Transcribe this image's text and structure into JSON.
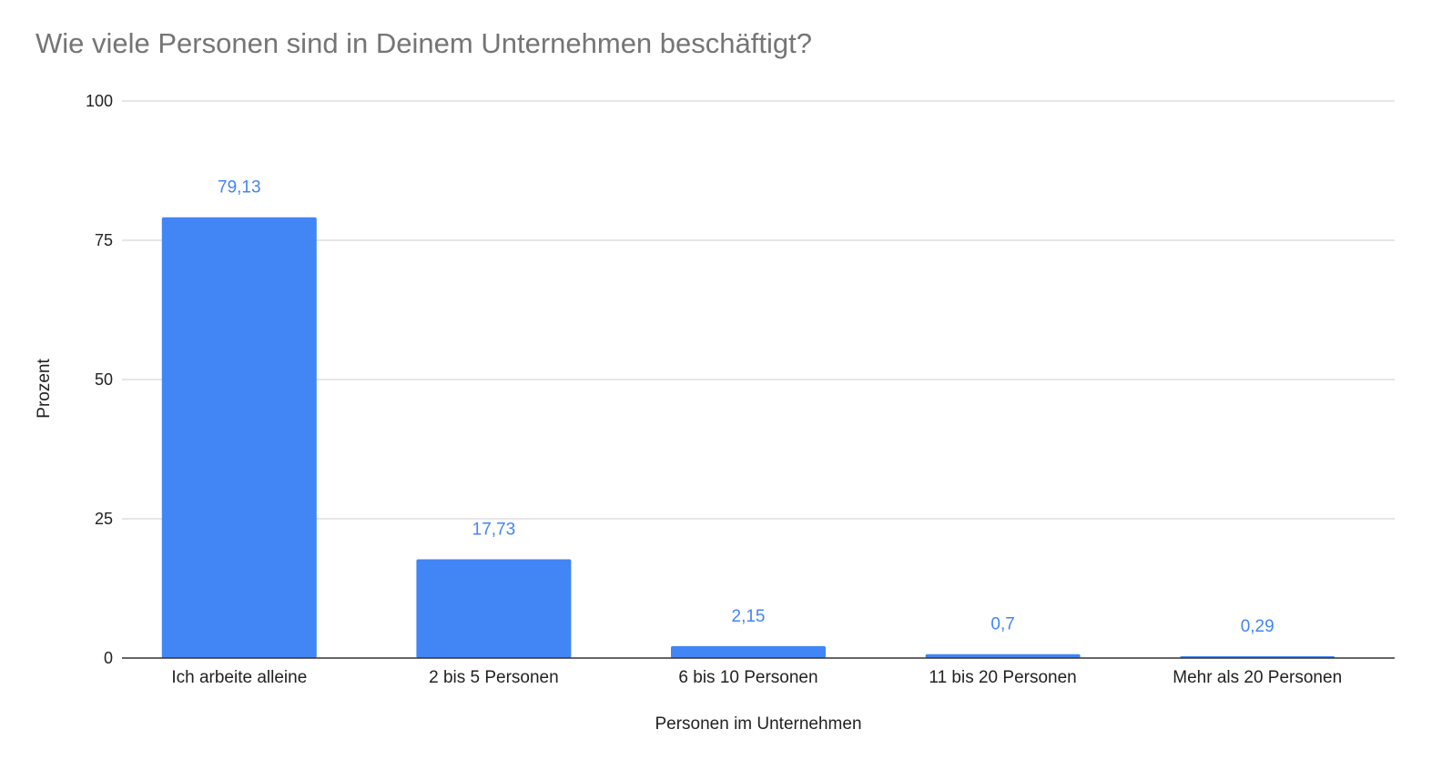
{
  "chart_data": {
    "type": "bar",
    "title": "Wie viele Personen sind in Deinem Unternehmen beschäftigt?",
    "xlabel": "Personen im Unternehmen",
    "ylabel": "Prozent",
    "categories": [
      "Ich arbeite alleine",
      "2 bis 5 Personen",
      "6 bis 10 Personen",
      "11 bis 20 Personen",
      "Mehr als 20 Personen"
    ],
    "values": [
      79.13,
      17.73,
      2.15,
      0.7,
      0.29
    ],
    "value_labels": [
      "79,13",
      "17,73",
      "2,15",
      "0,7",
      "0,29"
    ],
    "ylim": [
      0,
      100
    ],
    "yticks": [
      0,
      25,
      50,
      75,
      100
    ],
    "ytick_labels": [
      "0",
      "25",
      "50",
      "75",
      "100"
    ],
    "grid": true,
    "legend": "none",
    "bar_color": "#4285f4",
    "data_label_color": "#4285f4",
    "grid_color": "#cccccc",
    "axis_color": "#333333"
  }
}
